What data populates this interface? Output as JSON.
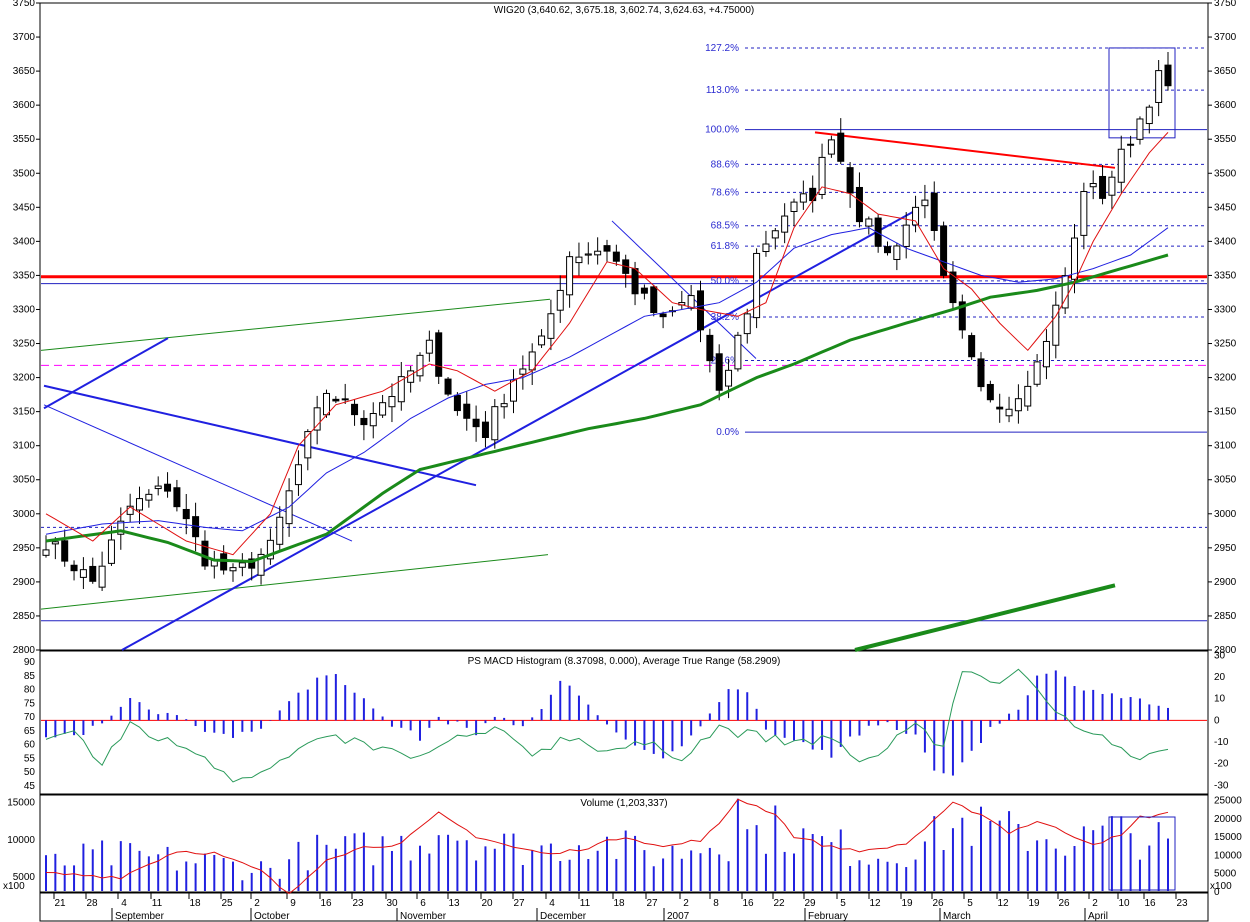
{
  "chart_data": [
    {
      "type": "candlestick",
      "panel": "price",
      "title": "WIG20 (3,640.62, 3,675.18, 3,602.74, 3,624.63, +4.75000)",
      "ylim": [
        2800,
        3750
      ],
      "y_ticks": [
        2800,
        2850,
        2900,
        2950,
        3000,
        3050,
        3100,
        3150,
        3200,
        3250,
        3300,
        3350,
        3400,
        3450,
        3500,
        3550,
        3600,
        3650,
        3700,
        3750
      ],
      "fib_levels": [
        {
          "label": "127.2%",
          "value": 3684
        },
        {
          "label": "113.0%",
          "value": 3622
        },
        {
          "label": "100.0%",
          "value": 3564
        },
        {
          "label": "88.6%",
          "value": 3513
        },
        {
          "label": "78.6%",
          "value": 3472
        },
        {
          "label": "68.5%",
          "value": 3423
        },
        {
          "label": "61.8%",
          "value": 3393
        },
        {
          "label": "50.0%",
          "value": 3342
        },
        {
          "label": "38.2%",
          "value": 3289
        },
        {
          "label": "23.6%",
          "value": 3225
        },
        {
          "label": "0.0%",
          "value": 3120
        }
      ],
      "horizontal_lines": [
        {
          "value": 3348,
          "color": "#ff0000",
          "style": "thick"
        },
        {
          "value": 3338,
          "color": "#2020c0",
          "style": "thin"
        },
        {
          "value": 3218,
          "color": "#ff00ff",
          "style": "dashed"
        },
        {
          "value": 2980,
          "color": "#2020c0",
          "style": "dotted"
        },
        {
          "value": 2843,
          "color": "#2020c0",
          "style": "thin"
        }
      ],
      "close_anchors": [
        [
          0,
          2960
        ],
        [
          5,
          2900
        ],
        [
          9,
          3010
        ],
        [
          13,
          3040
        ],
        [
          17,
          2935
        ],
        [
          20,
          2910
        ],
        [
          24,
          2950
        ],
        [
          28,
          3110
        ],
        [
          30,
          3180
        ],
        [
          34,
          3140
        ],
        [
          38,
          3190
        ],
        [
          41,
          3245
        ],
        [
          44,
          3150
        ],
        [
          47,
          3120
        ],
        [
          50,
          3200
        ],
        [
          53,
          3250
        ],
        [
          56,
          3380
        ],
        [
          60,
          3390
        ],
        [
          63,
          3330
        ],
        [
          66,
          3280
        ],
        [
          69,
          3320
        ],
        [
          72,
          3170
        ],
        [
          75,
          3300
        ],
        [
          76,
          3380
        ],
        [
          79,
          3440
        ],
        [
          82,
          3470
        ],
        [
          84,
          3560
        ],
        [
          87,
          3440
        ],
        [
          90,
          3380
        ],
        [
          94,
          3470
        ],
        [
          96,
          3340
        ],
        [
          98,
          3260
        ],
        [
          100,
          3180
        ],
        [
          103,
          3160
        ],
        [
          106,
          3220
        ],
        [
          108,
          3300
        ],
        [
          110,
          3400
        ],
        [
          111,
          3480
        ],
        [
          113,
          3470
        ],
        [
          117,
          3580
        ],
        [
          119,
          3640
        ],
        [
          120,
          3625
        ]
      ],
      "sma_short_anchors": [
        [
          0,
          3000
        ],
        [
          5,
          2960
        ],
        [
          9,
          3010
        ],
        [
          15,
          2960
        ],
        [
          20,
          2940
        ],
        [
          24,
          3000
        ],
        [
          27,
          3100
        ],
        [
          31,
          3160
        ],
        [
          36,
          3180
        ],
        [
          41,
          3220
        ],
        [
          44,
          3210
        ],
        [
          48,
          3180
        ],
        [
          52,
          3210
        ],
        [
          56,
          3280
        ],
        [
          60,
          3370
        ],
        [
          63,
          3360
        ],
        [
          67,
          3310
        ],
        [
          70,
          3300
        ],
        [
          74,
          3290
        ],
        [
          77,
          3310
        ],
        [
          80,
          3420
        ],
        [
          83,
          3480
        ],
        [
          86,
          3470
        ],
        [
          89,
          3440
        ],
        [
          93,
          3430
        ],
        [
          96,
          3360
        ],
        [
          99,
          3330
        ],
        [
          102,
          3280
        ],
        [
          105,
          3240
        ],
        [
          108,
          3290
        ],
        [
          110,
          3340
        ],
        [
          112,
          3400
        ],
        [
          115,
          3470
        ],
        [
          118,
          3530
        ],
        [
          120,
          3560
        ]
      ],
      "sma_mid_anchors": [
        [
          0,
          2970
        ],
        [
          6,
          2985
        ],
        [
          12,
          2990
        ],
        [
          17,
          2980
        ],
        [
          21,
          2975
        ],
        [
          26,
          3010
        ],
        [
          30,
          3060
        ],
        [
          34,
          3090
        ],
        [
          39,
          3140
        ],
        [
          43,
          3170
        ],
        [
          47,
          3190
        ],
        [
          51,
          3200
        ],
        [
          56,
          3230
        ],
        [
          60,
          3260
        ],
        [
          64,
          3290
        ],
        [
          68,
          3300
        ],
        [
          72,
          3310
        ],
        [
          76,
          3340
        ],
        [
          80,
          3390
        ],
        [
          84,
          3410
        ],
        [
          88,
          3420
        ],
        [
          92,
          3390
        ],
        [
          96,
          3370
        ],
        [
          100,
          3350
        ],
        [
          104,
          3340
        ],
        [
          108,
          3345
        ],
        [
          112,
          3360
        ],
        [
          116,
          3380
        ],
        [
          120,
          3420
        ]
      ],
      "sma_long_anchors": [
        [
          0,
          2960
        ],
        [
          8,
          2975
        ],
        [
          13,
          2958
        ],
        [
          18,
          2932
        ],
        [
          22,
          2930
        ],
        [
          30,
          2970
        ],
        [
          36,
          3030
        ],
        [
          40,
          3065
        ],
        [
          46,
          3085
        ],
        [
          52,
          3105
        ],
        [
          58,
          3125
        ],
        [
          64,
          3140
        ],
        [
          70,
          3160
        ],
        [
          76,
          3200
        ],
        [
          80,
          3220
        ],
        [
          86,
          3255
        ],
        [
          92,
          3280
        ],
        [
          97,
          3300
        ],
        [
          101,
          3318
        ],
        [
          106,
          3328
        ],
        [
          110,
          3340
        ],
        [
          115,
          3360
        ],
        [
          120,
          3380
        ]
      ],
      "month_labels": [
        "September",
        "October",
        "November",
        "December",
        "2007",
        "February",
        "March",
        "April"
      ],
      "day_labels": [
        "21",
        "28",
        "4",
        "11",
        "18",
        "25",
        "2",
        "9",
        "16",
        "23",
        "30",
        "6",
        "13",
        "20",
        "27",
        "4",
        "11",
        "18",
        "27",
        "2",
        "8",
        "16",
        "22",
        "29",
        "5",
        "12",
        "19",
        "26",
        "5",
        "12",
        "19",
        "26",
        "2",
        "10",
        "16",
        "23"
      ]
    },
    {
      "type": "histogram",
      "panel": "macd",
      "title": "PS MACD Histogram (8.37098, 0.000), Average True Range (58.2909)",
      "left_ylim": [
        42,
        94
      ],
      "left_ticks": [
        45,
        50,
        55,
        60,
        65,
        70,
        75,
        80,
        85,
        90
      ],
      "right_ylim": [
        -34,
        32
      ],
      "right_ticks": [
        -30,
        -20,
        -10,
        0,
        10,
        20,
        30
      ]
    },
    {
      "type": "bar",
      "panel": "volume",
      "title": "Volume (1,203,337)",
      "left_ylim": [
        3000,
        16000
      ],
      "left_ticks": [
        5000,
        10000,
        15000
      ],
      "right_ylim": [
        0,
        26500
      ],
      "right_ticks": [
        0,
        5000,
        10000,
        15000,
        20000,
        25000
      ],
      "scale_note": "x100"
    }
  ]
}
